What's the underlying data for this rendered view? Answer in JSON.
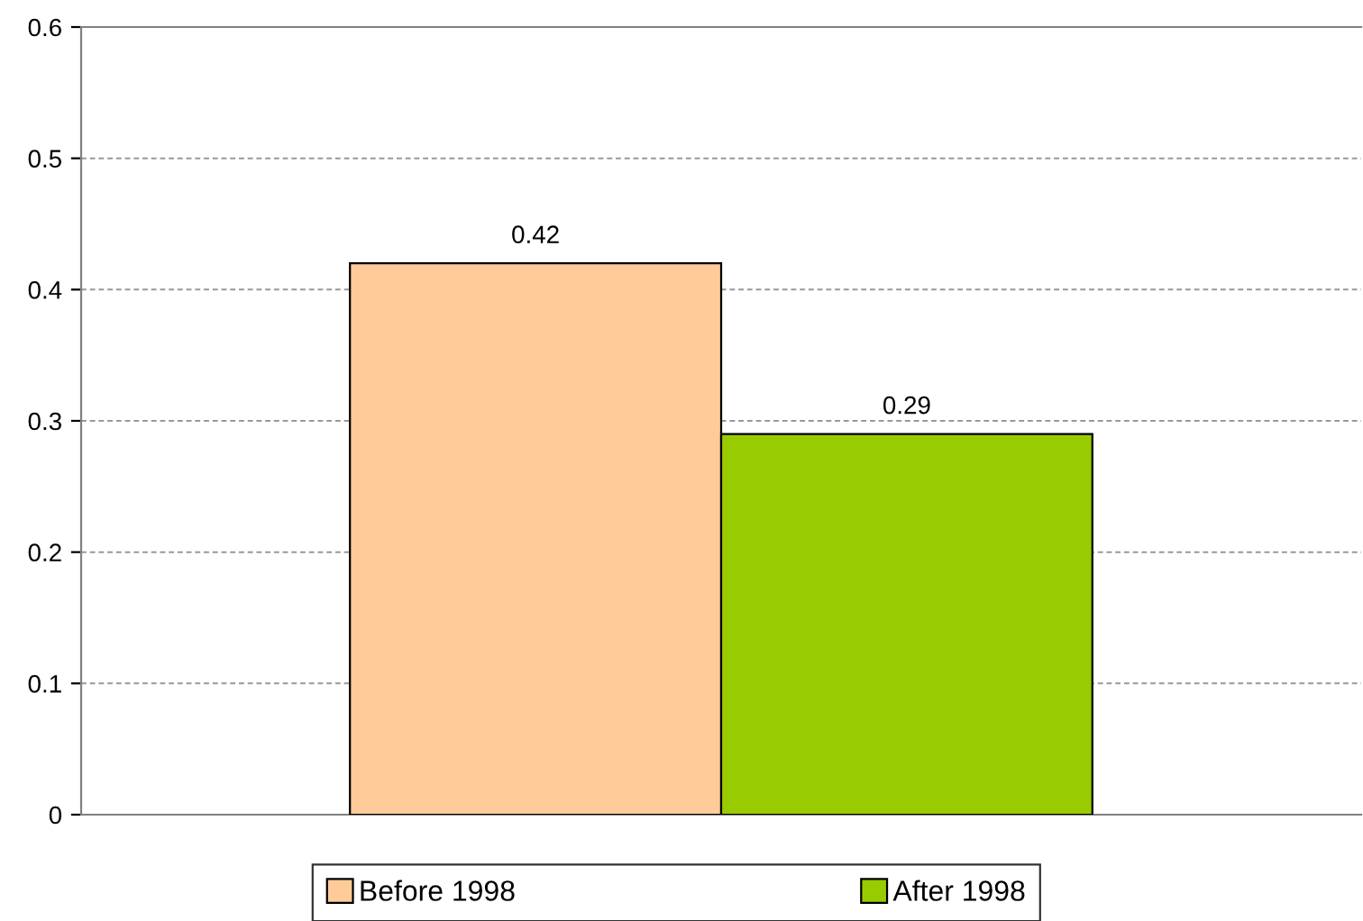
{
  "chart_data": {
    "type": "bar",
    "categories": [
      null
    ],
    "series": [
      {
        "name": "Before 1998",
        "color": "#ffcc99",
        "values": [
          0.42
        ]
      },
      {
        "name": "After 1998",
        "color": "#99cc00",
        "values": [
          0.29
        ]
      }
    ],
    "ylim": [
      0,
      0.6
    ],
    "yticks": [
      0,
      0.1,
      0.2,
      0.3,
      0.4,
      0.5,
      0.6
    ],
    "grid": "y",
    "legend": "bottom",
    "data_labels": true
  }
}
